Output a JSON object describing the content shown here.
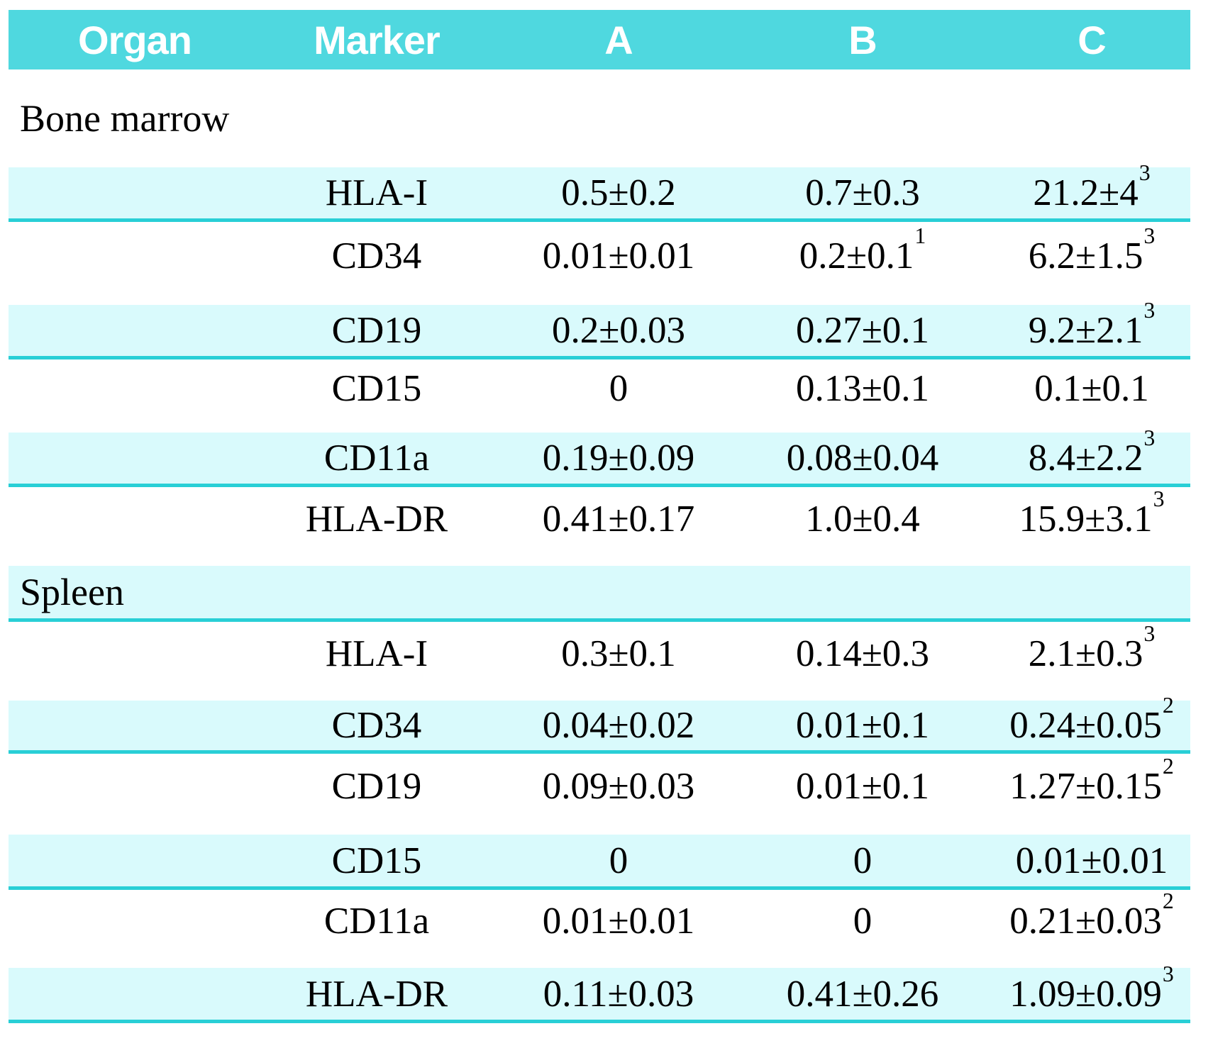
{
  "table": {
    "columns": [
      {
        "key": "organ",
        "label": "Organ"
      },
      {
        "key": "marker",
        "label": "Marker"
      },
      {
        "key": "a",
        "label": "A"
      },
      {
        "key": "b",
        "label": "B"
      },
      {
        "key": "c",
        "label": "C"
      }
    ],
    "groups": [
      {
        "organ": "Bone marrow",
        "rows": [
          {
            "marker": "HLA-I",
            "a": {
              "v": "0.5±0.2"
            },
            "b": {
              "v": "0.7±0.3"
            },
            "c": {
              "v": "21.2±4",
              "sup": "3"
            }
          },
          {
            "marker": "CD34",
            "a": {
              "v": "0.01±0.01"
            },
            "b": {
              "v": "0.2±0.1",
              "sup": "1"
            },
            "c": {
              "v": "6.2±1.5",
              "sup": "3"
            }
          },
          {
            "marker": "CD19",
            "a": {
              "v": "0.2±0.03"
            },
            "b": {
              "v": "0.27±0.1"
            },
            "c": {
              "v": "9.2±2.1",
              "sup": "3"
            }
          },
          {
            "marker": "CD15",
            "a": {
              "v": "0"
            },
            "b": {
              "v": "0.13±0.1"
            },
            "c": {
              "v": "0.1±0.1"
            }
          },
          {
            "marker": "CD11a",
            "a": {
              "v": "0.19±0.09"
            },
            "b": {
              "v": "0.08±0.04"
            },
            "c": {
              "v": "8.4±2.2",
              "sup": "3"
            }
          },
          {
            "marker": "HLA-DR",
            "a": {
              "v": "0.41±0.17"
            },
            "b": {
              "v": "1.0±0.4"
            },
            "c": {
              "v": "15.9±3.1",
              "sup": "3"
            }
          }
        ]
      },
      {
        "organ": "Spleen",
        "rows": [
          {
            "marker": "HLA-I",
            "a": {
              "v": "0.3±0.1"
            },
            "b": {
              "v": "0.14±0.3"
            },
            "c": {
              "v": "2.1±0.3",
              "sup": "3"
            }
          },
          {
            "marker": "CD34",
            "a": {
              "v": "0.04±0.02"
            },
            "b": {
              "v": "0.01±0.1"
            },
            "c": {
              "v": "0.24±0.05",
              "sup": "2"
            }
          },
          {
            "marker": "CD19",
            "a": {
              "v": "0.09±0.03"
            },
            "b": {
              "v": "0.01±0.1"
            },
            "c": {
              "v": "1.27±0.15",
              "sup": "2"
            }
          },
          {
            "marker": "CD15",
            "a": {
              "v": "0"
            },
            "b": {
              "v": "0"
            },
            "c": {
              "v": "0.01±0.01"
            }
          },
          {
            "marker": "CD11a",
            "a": {
              "v": "0.01±0.01"
            },
            "b": {
              "v": "0"
            },
            "c": {
              "v": "0.21±0.03",
              "sup": "2"
            }
          },
          {
            "marker": "HLA-DR",
            "a": {
              "v": "0.11±0.03"
            },
            "b": {
              "v": "0.41±0.26"
            },
            "c": {
              "v": "1.09±0.09",
              "sup": "3"
            }
          }
        ]
      }
    ],
    "colors": {
      "header_bg": "#4fd8df",
      "header_text": "#ffffff",
      "stripe_bg": "#d9fafc",
      "rule": "#29cfd6",
      "text": "#000000"
    }
  }
}
